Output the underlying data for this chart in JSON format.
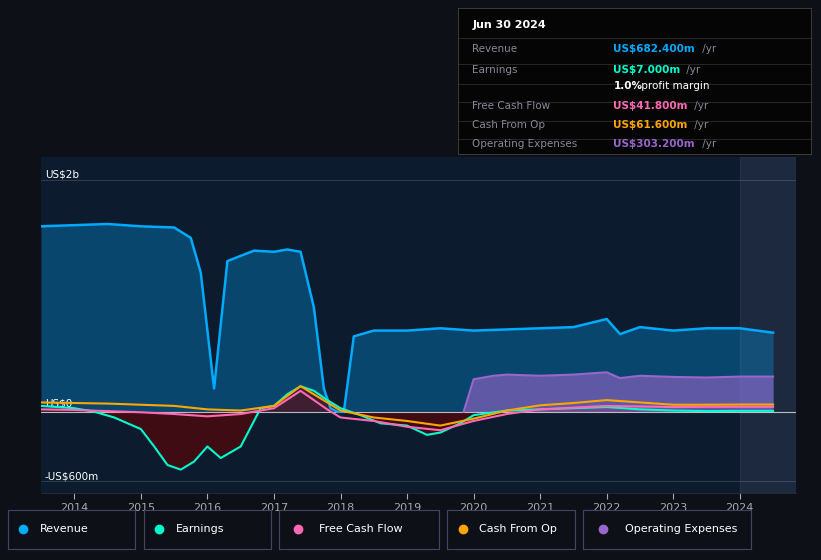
{
  "bg_color": "#0d1117",
  "plot_bg_color": "#0d1b2e",
  "ylabel_top": "US$2b",
  "ylabel_zero": "US$0",
  "ylabel_bottom": "-US$600m",
  "ylim": [
    -700,
    2200
  ],
  "xlim": [
    2013.5,
    2024.85
  ],
  "colors": {
    "revenue": "#00aaff",
    "earnings": "#00ffcc",
    "free_cash_flow": "#ff69b4",
    "cash_from_op": "#ffa500",
    "operating_expenses": "#9966cc"
  },
  "info_box": {
    "date": "Jun 30 2024",
    "revenue_val": "US$682.400m",
    "earnings_val": "US$7.000m",
    "profit_margin": "1.0%",
    "fcf_val": "US$41.800m",
    "cfo_val": "US$61.600m",
    "opex_val": "US$303.200m"
  },
  "legend_labels": [
    "Revenue",
    "Earnings",
    "Free Cash Flow",
    "Cash From Op",
    "Operating Expenses"
  ],
  "x_rev": [
    2013.5,
    2014.0,
    2014.5,
    2015.0,
    2015.5,
    2015.75,
    2015.9,
    2016.1,
    2016.3,
    2016.7,
    2017.0,
    2017.2,
    2017.4,
    2017.6,
    2017.75,
    2017.85,
    2017.95,
    2018.05,
    2018.2,
    2018.5,
    2019.0,
    2019.5,
    2020.0,
    2020.5,
    2021.0,
    2021.5,
    2022.0,
    2022.2,
    2022.5,
    2023.0,
    2023.5,
    2024.0,
    2024.5
  ],
  "y_rev": [
    1600,
    1610,
    1620,
    1600,
    1590,
    1500,
    1200,
    200,
    1300,
    1390,
    1380,
    1400,
    1380,
    900,
    200,
    30,
    0,
    0,
    650,
    700,
    700,
    720,
    700,
    710,
    720,
    730,
    800,
    670,
    730,
    700,
    720,
    720,
    682
  ],
  "x_earn": [
    2013.5,
    2014.0,
    2014.3,
    2014.6,
    2015.0,
    2015.2,
    2015.4,
    2015.6,
    2015.8,
    2016.0,
    2016.2,
    2016.5,
    2016.8,
    2017.0,
    2017.2,
    2017.4,
    2017.6,
    2017.8,
    2018.0,
    2018.3,
    2018.6,
    2019.0,
    2019.3,
    2019.5,
    2019.8,
    2020.0,
    2020.5,
    2021.0,
    2021.5,
    2022.0,
    2022.5,
    2023.0,
    2023.5,
    2024.0,
    2024.5
  ],
  "y_earn": [
    50,
    30,
    0,
    -50,
    -150,
    -300,
    -460,
    -500,
    -430,
    -300,
    -400,
    -300,
    30,
    50,
    150,
    220,
    180,
    100,
    30,
    -30,
    -100,
    -120,
    -200,
    -180,
    -100,
    -30,
    10,
    20,
    30,
    40,
    20,
    10,
    5,
    7,
    7
  ],
  "x_fcf": [
    2013.5,
    2014.0,
    2014.5,
    2015.0,
    2015.5,
    2016.0,
    2016.5,
    2017.0,
    2017.4,
    2017.8,
    2018.0,
    2018.5,
    2019.0,
    2019.5,
    2020.0,
    2020.5,
    2021.0,
    2021.5,
    2022.0,
    2022.5,
    2023.0,
    2023.5,
    2024.0,
    2024.5
  ],
  "y_fcf": [
    20,
    15,
    5,
    -5,
    -20,
    -40,
    -20,
    30,
    180,
    20,
    -50,
    -80,
    -130,
    -160,
    -80,
    -20,
    20,
    35,
    50,
    45,
    40,
    42,
    42,
    42
  ],
  "x_cfo": [
    2013.5,
    2014.0,
    2014.5,
    2015.0,
    2015.5,
    2016.0,
    2016.5,
    2017.0,
    2017.4,
    2017.8,
    2018.0,
    2018.5,
    2019.0,
    2019.5,
    2020.0,
    2020.5,
    2021.0,
    2021.5,
    2022.0,
    2022.5,
    2023.0,
    2023.5,
    2024.0,
    2024.5
  ],
  "y_cfo": [
    80,
    75,
    70,
    60,
    50,
    20,
    10,
    50,
    220,
    80,
    10,
    -50,
    -80,
    -120,
    -60,
    10,
    55,
    75,
    100,
    80,
    60,
    60,
    62,
    62
  ],
  "x_opex": [
    2019.85,
    2020.0,
    2020.3,
    2020.5,
    2021.0,
    2021.5,
    2022.0,
    2022.2,
    2022.5,
    2023.0,
    2023.5,
    2024.0,
    2024.5
  ],
  "y_opex": [
    0,
    280,
    310,
    320,
    310,
    320,
    340,
    290,
    310,
    300,
    295,
    303,
    303
  ]
}
